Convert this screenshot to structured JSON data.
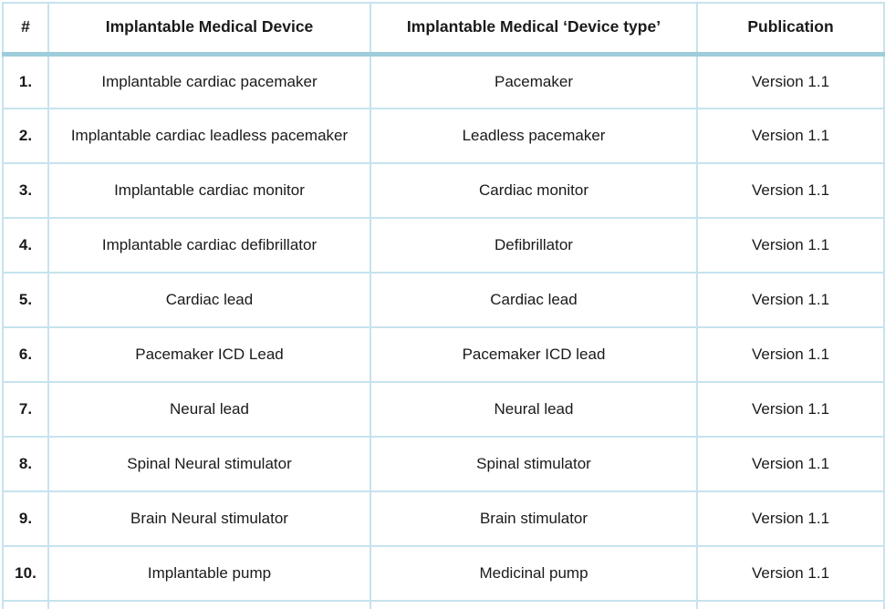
{
  "table": {
    "columns": [
      {
        "label": "#"
      },
      {
        "label": "Implantable Medical Device"
      },
      {
        "label": "Implantable Medical ‘Device type’"
      },
      {
        "label": "Publication"
      }
    ],
    "rows": [
      {
        "num": "1.",
        "device": "Implantable cardiac pacemaker",
        "type": "Pacemaker",
        "publication": "Version 1.1"
      },
      {
        "num": "2.",
        "device": "Implantable cardiac leadless pacemaker",
        "type": "Leadless pacemaker",
        "publication": "Version 1.1"
      },
      {
        "num": "3.",
        "device": "Implantable cardiac monitor",
        "type": "Cardiac monitor",
        "publication": "Version 1.1"
      },
      {
        "num": "4.",
        "device": "Implantable cardiac defibrillator",
        "type": "Defibrillator",
        "publication": "Version 1.1"
      },
      {
        "num": "5.",
        "device": "Cardiac lead",
        "type": "Cardiac lead",
        "publication": "Version 1.1"
      },
      {
        "num": "6.",
        "device": "Pacemaker ICD Lead",
        "type": "Pacemaker ICD lead",
        "publication": "Version 1.1"
      },
      {
        "num": "7.",
        "device": "Neural lead",
        "type": "Neural lead",
        "publication": "Version 1.1"
      },
      {
        "num": "8.",
        "device": "Spinal Neural stimulator",
        "type": "Spinal stimulator",
        "publication": "Version 1.1"
      },
      {
        "num": "9.",
        "device": "Brain Neural stimulator",
        "type": "Brain stimulator",
        "publication": "Version 1.1"
      },
      {
        "num": "10.",
        "device": "Implantable pump",
        "type": "Medicinal pump",
        "publication": "Version 1.1"
      }
    ]
  },
  "colors": {
    "border_light": "#c6e3ee",
    "border_header_band": "#9dccdb",
    "text": "#1a1a1a",
    "background": "#ffffff"
  }
}
